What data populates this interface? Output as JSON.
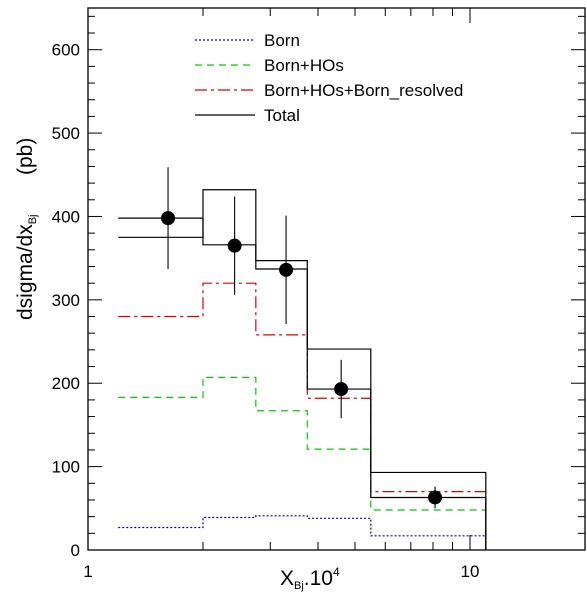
{
  "chart_data": {
    "type": "line",
    "xscale": "log",
    "xlim": [
      1,
      20
    ],
    "ylim": [
      0,
      650
    ],
    "x_ticks": [
      {
        "value": 1,
        "label": "1"
      },
      {
        "value": 10,
        "label": "10"
      }
    ],
    "y_ticks": [
      {
        "value": 0,
        "label": "0"
      },
      {
        "value": 100,
        "label": "100"
      },
      {
        "value": 200,
        "label": "200"
      },
      {
        "value": 300,
        "label": "300"
      },
      {
        "value": 400,
        "label": "400"
      },
      {
        "value": 500,
        "label": "500"
      },
      {
        "value": 600,
        "label": "600"
      }
    ],
    "xlabel": {
      "base": "X",
      "sub": "Bj",
      "rest": ".10",
      "sup": "4"
    },
    "ylabel": {
      "base": "dsigma/dx",
      "sub": "Bj",
      "unit": "(pb)"
    },
    "bin_edges": [
      1.2,
      2.0,
      2.75,
      3.75,
      5.5,
      11.0
    ],
    "series": [
      {
        "name": "Born",
        "color": "#0000cc",
        "dash": "2,2",
        "values": [
          27,
          39,
          41,
          38,
          17
        ]
      },
      {
        "name": "Born+HOs",
        "color": "#00cc00",
        "dash": "7,5",
        "values": [
          183,
          207,
          167,
          121,
          48
        ]
      },
      {
        "name": "Born+HOs+Born_resolved",
        "color": "#dd0000",
        "dash": "12,4,3,4",
        "values": [
          280,
          320,
          258,
          182,
          70
        ]
      },
      {
        "name": "Total",
        "color": "#000000",
        "dash": "",
        "values": [
          375,
          432,
          347,
          241,
          93
        ]
      }
    ],
    "extra_hist": {
      "color": "#000000",
      "values": [
        398,
        366,
        337,
        193,
        63
      ]
    },
    "data_points": [
      {
        "x": 1.62,
        "y": 398,
        "err": 61
      },
      {
        "x": 2.42,
        "y": 365,
        "err": 59
      },
      {
        "x": 3.3,
        "y": 336,
        "err": 65
      },
      {
        "x": 4.6,
        "y": 193,
        "err": 35
      },
      {
        "x": 8.1,
        "y": 63,
        "err": 13
      }
    ],
    "legend_position": "top-center"
  }
}
